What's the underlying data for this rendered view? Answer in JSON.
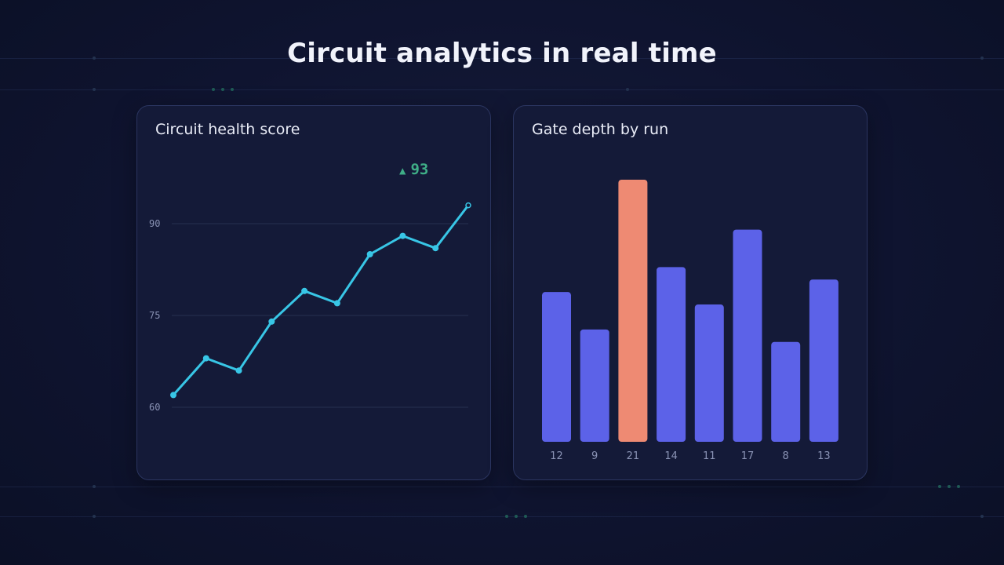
{
  "page": {
    "title": "Circuit analytics in real time"
  },
  "colors": {
    "line": "#38c6e6",
    "bar": "#5c62e8",
    "bar_highlight": "#ee8a73",
    "delta": "#3fae87",
    "grid": "#26304f",
    "tick": "#8a93b5"
  },
  "health_card": {
    "title": "Circuit health score",
    "delta_icon": "triangle-up-icon",
    "delta_arrow": "▲",
    "delta_value": "93"
  },
  "depth_card": {
    "title": "Gate depth by run"
  },
  "chart_data": [
    {
      "type": "line",
      "title": "Circuit health score",
      "x": [
        1,
        2,
        3,
        4,
        5,
        6,
        7,
        8,
        9,
        10
      ],
      "y": [
        62,
        68,
        66,
        74,
        79,
        77,
        85,
        88,
        86,
        93
      ],
      "yticks": [
        60,
        75,
        90
      ],
      "ylim": [
        60,
        93
      ],
      "grid": true,
      "annotation": "▲ 93"
    },
    {
      "type": "bar",
      "title": "Gate depth by run",
      "categories": [
        "12",
        "9",
        "21",
        "14",
        "11",
        "17",
        "8",
        "13"
      ],
      "values": [
        12,
        9,
        21,
        14,
        11,
        17,
        8,
        13
      ],
      "highlight_index": 2,
      "ylim": [
        0,
        21
      ]
    }
  ]
}
